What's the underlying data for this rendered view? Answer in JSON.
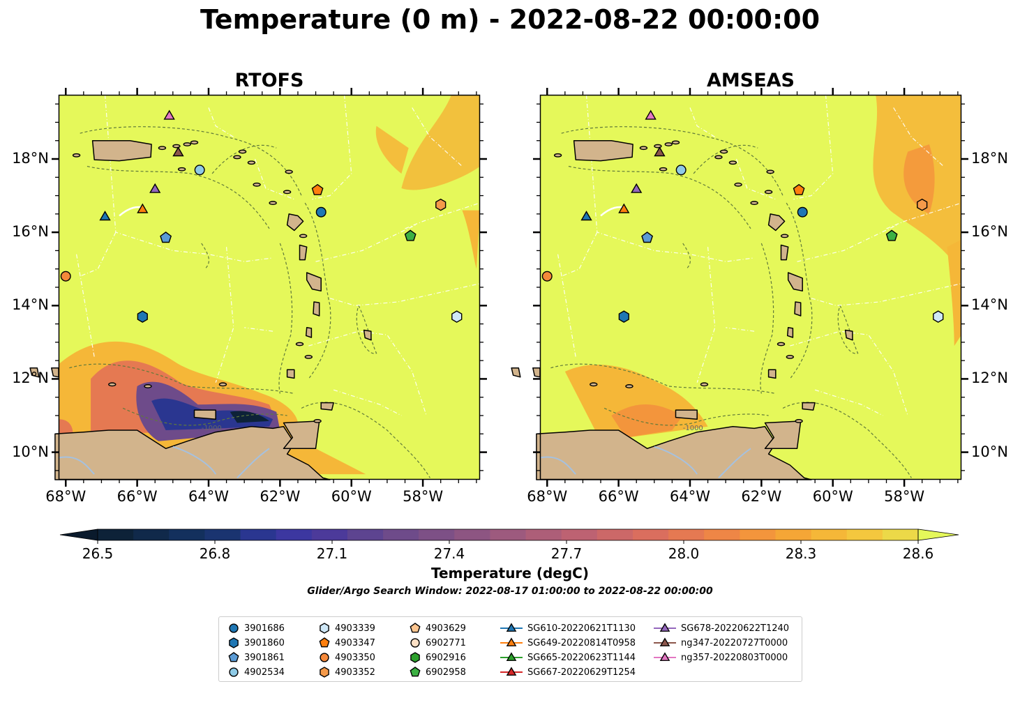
{
  "title": "Temperature (0 m) - 2022-08-22 00:00:00",
  "panels": [
    {
      "title": "RTOFS"
    },
    {
      "title": "AMSEAS"
    }
  ],
  "lon_labels": [
    "68°W",
    "66°W",
    "64°W",
    "62°W",
    "60°W",
    "58°W"
  ],
  "lat_labels": [
    "18°N",
    "16°N",
    "14°N",
    "12°N",
    "10°N"
  ],
  "contour_label": "-1000",
  "colorbar": {
    "label": "Temperature (degC)",
    "ticks": [
      "26.5",
      "26.8",
      "27.1",
      "27.4",
      "27.7",
      "28.0",
      "28.3",
      "28.6"
    ],
    "colors": [
      "#0d2238",
      "#10294a",
      "#13305d",
      "#1a3470",
      "#2a3690",
      "#3c37a0",
      "#4c3a9a",
      "#5d4490",
      "#6e4b8a",
      "#7d5086",
      "#8d5582",
      "#9d5a7e",
      "#ad5e78",
      "#bd6272",
      "#cc6868",
      "#da6e5e",
      "#e57952",
      "#ee8646",
      "#f3953c",
      "#f5a636",
      "#f5b738",
      "#f4c73e",
      "#ecd948"
    ],
    "extend_low": "#0a1a2c",
    "extend_high": "#e5f85a"
  },
  "search_window": "Glider/Argo Search Window: 2022-08-17 01:00:00 to 2022-08-22 00:00:00",
  "palette": {
    "ocean": "#e5f85a",
    "land": "#d2b48c",
    "water": "#a6c1df"
  },
  "legend": {
    "columns": [
      [
        {
          "label": "3901686",
          "marker": "circle",
          "color": "#1f77b4"
        },
        {
          "label": "3901860",
          "marker": "hexagon",
          "color": "#1f77b4"
        },
        {
          "label": "3901861",
          "marker": "pentagon",
          "color": "#5b9bd5"
        },
        {
          "label": "4902534",
          "marker": "circle",
          "color": "#8ecae6"
        }
      ],
      [
        {
          "label": "4903339",
          "marker": "hexagon",
          "color": "#cfe8f7"
        },
        {
          "label": "4903347",
          "marker": "pentagon",
          "color": "#ff7f0e"
        },
        {
          "label": "4903350",
          "marker": "circle",
          "color": "#f5893a"
        },
        {
          "label": "4903352",
          "marker": "hexagon",
          "color": "#f59a4a"
        }
      ],
      [
        {
          "label": "4903629",
          "marker": "pentagon",
          "color": "#fdc58f"
        },
        {
          "label": "6902771",
          "marker": "circle",
          "color": "#fde0c5"
        },
        {
          "label": "6902916",
          "marker": "hexagon",
          "color": "#2ca02c"
        },
        {
          "label": "6902958",
          "marker": "pentagon",
          "color": "#3cb043"
        }
      ],
      [
        {
          "label": "SG610-20220621T1130",
          "marker": "triangle",
          "color": "#1f77b4"
        },
        {
          "label": "SG649-20220814T0958",
          "marker": "triangle",
          "color": "#ff7f0e"
        },
        {
          "label": "SG665-20220623T1144",
          "marker": "triangle",
          "color": "#2ca02c"
        },
        {
          "label": "SG667-20220629T1254",
          "marker": "triangle",
          "color": "#d62728"
        }
      ],
      [
        {
          "label": "SG678-20220622T1240",
          "marker": "triangle",
          "color": "#9467bd"
        },
        {
          "label": "ng347-20220727T0000",
          "marker": "triangle",
          "color": "#8c564b"
        },
        {
          "label": "ng357-20220803T0000",
          "marker": "triangle",
          "color": "#e377c2"
        }
      ]
    ]
  },
  "map_markers": [
    {
      "id": "3901686",
      "lon": -60.85,
      "lat": 16.55,
      "marker": "circle",
      "color": "#1f77b4"
    },
    {
      "id": "3901860",
      "lon": -65.85,
      "lat": 13.7,
      "marker": "hexagon",
      "color": "#1f77b4"
    },
    {
      "id": "3901861",
      "lon": -65.2,
      "lat": 15.85,
      "marker": "pentagon",
      "color": "#5b9bd5"
    },
    {
      "id": "4902534",
      "lon": -64.25,
      "lat": 17.7,
      "marker": "circle",
      "color": "#8ecae6"
    },
    {
      "id": "4903339",
      "lon": -57.05,
      "lat": 13.7,
      "marker": "hexagon",
      "color": "#cfe8f7"
    },
    {
      "id": "4903347",
      "lon": -60.95,
      "lat": 17.15,
      "marker": "pentagon",
      "color": "#ff7f0e"
    },
    {
      "id": "4903350",
      "lon": -68.0,
      "lat": 14.8,
      "marker": "circle",
      "color": "#f5893a"
    },
    {
      "id": "4903352",
      "lon": -57.5,
      "lat": 16.75,
      "marker": "hexagon",
      "color": "#f59a4a"
    },
    {
      "id": "6902958",
      "lon": -58.35,
      "lat": 15.9,
      "marker": "pentagon",
      "color": "#3cb043"
    },
    {
      "id": "SG610-20220621T1130",
      "lon": -66.9,
      "lat": 16.45,
      "marker": "triangle",
      "color": "#1f77b4"
    },
    {
      "id": "SG649-20220814T0958",
      "lon": -65.85,
      "lat": 16.65,
      "marker": "triangle",
      "color": "#ff7f0e"
    },
    {
      "id": "SG678-20220622T1240",
      "lon": -65.5,
      "lat": 17.2,
      "marker": "triangle",
      "color": "#9467bd"
    },
    {
      "id": "ng347-20220727T0000",
      "lon": -64.85,
      "lat": 18.2,
      "marker": "triangle",
      "color": "#8c564b"
    },
    {
      "id": "ng357-20220803T0000",
      "lon": -65.1,
      "lat": 19.2,
      "marker": "triangle",
      "color": "#e377c2"
    }
  ]
}
